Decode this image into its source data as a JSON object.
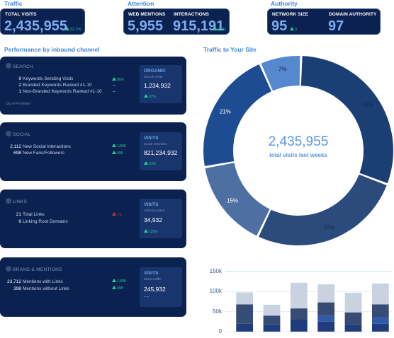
{
  "traffic": {
    "section": "Traffic",
    "label": "TOTAL VISITS",
    "value": "2,435,955",
    "delta": "32.2%"
  },
  "attention": {
    "section": "Attention",
    "mentions": {
      "label": "WEB MENTIONS",
      "value": "5,955"
    },
    "interactions": {
      "label": "INTERACTIONS",
      "value": "915,191",
      "delta": "23%"
    }
  },
  "authority": {
    "section": "Authority",
    "network": {
      "label": "NETWORK SIZE",
      "value": "95",
      "delta": "3"
    },
    "domain": {
      "label": "DOMAIN AUTHORITY",
      "value": "97"
    }
  },
  "performance": {
    "title": "Performance by inbound channel",
    "search": {
      "title": "SEARCH",
      "rows": [
        {
          "num": "9",
          "text": "Keywords Sending Visits",
          "delta": "80%"
        },
        {
          "num": "2",
          "text": "Branded Keywords Ranked #1-10",
          "delta": "–"
        },
        {
          "num": "1",
          "text": "Non-Branded Keywords Ranked #1-10",
          "delta": "–"
        }
      ],
      "footnote": "Out of Provided",
      "side": {
        "title": "ORGANIC",
        "sub": "search visits",
        "value": "1,234,932",
        "delta": "67%"
      }
    },
    "social": {
      "title": "SOCIAL",
      "rows": [
        {
          "num": "2,112",
          "text": "New Social Interactions",
          "delta": "1,898"
        },
        {
          "num": "698",
          "text": "New Fans/Followers",
          "delta": "698"
        }
      ],
      "side": {
        "title": "VISITS",
        "sub": "social networks",
        "value": "821,234,932",
        "delta": "61%"
      }
    },
    "links": {
      "title": "LINKS",
      "rows": [
        {
          "num": "21",
          "text": "Total Links",
          "delta": "1%"
        },
        {
          "num": "6",
          "text": "Linking Root Domains",
          "delta": ""
        }
      ],
      "side": {
        "title": "VISITS",
        "sub": "referring sites",
        "value": "34,932",
        "delta": "120%"
      }
    },
    "brand": {
      "title": "BRAND & MENTIONS",
      "rows": [
        {
          "num": "23,712",
          "text": "Mentions with Links",
          "delta": "1,898"
        },
        {
          "num": "398",
          "text": "Mentions without Links",
          "delta": "698"
        }
      ],
      "side": {
        "title": "VISITS",
        "sub": "direct traffic",
        "value": "245,932",
        "delta": "– –"
      }
    }
  },
  "traffic_site": {
    "title": "Traffic to Your Site",
    "center_value": "2,435,955",
    "center_label": "total visits last weeks"
  },
  "colors": {
    "navy": "#0b2150",
    "accent": "#7dadf0",
    "green": "#1fce8e",
    "red": "#c0392b"
  },
  "chart_data": [
    {
      "type": "pie",
      "values": [
        30,
        26,
        15,
        21,
        7
      ],
      "labels": [
        "30%",
        "26%",
        "15%",
        "21%",
        "7%"
      ],
      "colors": [
        "#1b3f74",
        "#2c4b7d",
        "#4e6fa2",
        "#1e4c92",
        "#5688d0"
      ]
    },
    {
      "type": "bar",
      "ylim": [
        0,
        150000
      ],
      "ytick_labels": [
        "0",
        "50k",
        "100k",
        "150k"
      ],
      "categories": [
        "",
        "",
        "",
        "",
        "",
        ""
      ],
      "series": [
        {
          "values": [
            20000,
            18000,
            30000,
            25000,
            18000,
            20000
          ],
          "color": "#1f3d7c"
        },
        {
          "values": [
            0,
            0,
            0,
            15000,
            0,
            15000
          ],
          "color": "#2f5aab"
        },
        {
          "values": [
            48000,
            22000,
            28000,
            33000,
            30000,
            33000
          ],
          "color": "#364c74"
        },
        {
          "values": [
            30000,
            27000,
            64000,
            45000,
            49000,
            52000
          ],
          "color": "#c8d2e1"
        }
      ],
      "grid": true
    }
  ]
}
